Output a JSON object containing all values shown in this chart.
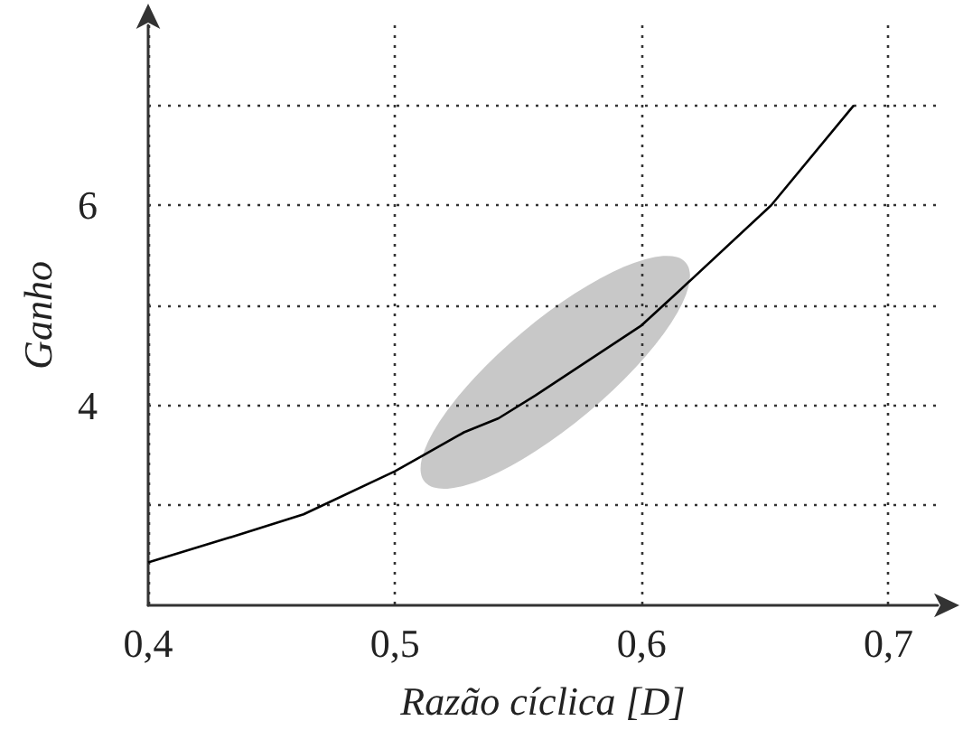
{
  "chart_data": {
    "type": "line",
    "xlabel": "Razão cíclica [D]",
    "ylabel": "Ganho",
    "x": [
      0.4,
      0.432,
      0.463,
      0.5,
      0.528,
      0.542,
      0.557,
      0.6,
      0.615,
      0.6525,
      0.686
    ],
    "series": [
      {
        "color": "#000000",
        "values": [
          2.43,
          2.67,
          2.91,
          3.34,
          3.73,
          3.87,
          4.1,
          4.8,
          5.14,
          6.0,
          7.0
        ]
      }
    ],
    "xlim": [
      0.4,
      0.72
    ],
    "ylim": [
      2,
      7.8
    ],
    "xticks": [
      {
        "value": 0.4,
        "label": "0,4"
      },
      {
        "value": 0.5,
        "label": "0,5"
      },
      {
        "value": 0.6,
        "label": "0,6"
      },
      {
        "value": 0.7,
        "label": "0,7"
      }
    ],
    "yticks": [
      {
        "value": 3,
        "label": null
      },
      4,
      {
        "value": 5,
        "label": null
      },
      6,
      {
        "value": 7,
        "label": null
      }
    ],
    "grid": true,
    "marker": "none",
    "line_style": "solid"
  }
}
